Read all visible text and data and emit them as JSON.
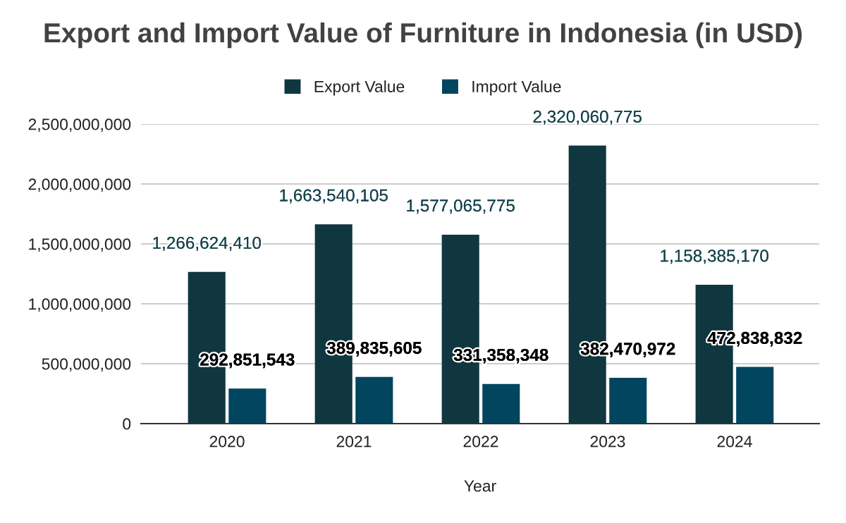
{
  "chart_data": {
    "type": "bar",
    "title": "Export and Import Value of Furniture in Indonesia (in USD)",
    "xlabel": "Year",
    "categories": [
      "2020",
      "2021",
      "2022",
      "2023",
      "2024"
    ],
    "series": [
      {
        "name": "Export Value",
        "color": "#10363f",
        "values": [
          1266624410,
          1663540105,
          1577065775,
          2320060775,
          1158385170
        ],
        "value_labels": [
          "1,266,624,410",
          "1,663,540,105",
          "1,577,065,775",
          "2,320,060,775",
          "1,158,385,170"
        ]
      },
      {
        "name": "Import Value",
        "color": "#01455f",
        "values": [
          292851543,
          389835605,
          331358348,
          382470972,
          472838832
        ],
        "value_labels": [
          "292,851,543",
          "389,835,605",
          "331,358,348",
          "382,470,972",
          "472,838,832"
        ]
      }
    ],
    "ylim": [
      0,
      2500000000
    ],
    "yticks": [
      0,
      {
        "value": 500000000,
        "label": "500,000,000"
      },
      {
        "value": 1000000000,
        "label": "1,000,000,000"
      },
      {
        "value": 1500000000,
        "label": "1,500,000,000"
      },
      {
        "value": 2000000000,
        "label": "2,000,000,000"
      },
      {
        "value": 2500000000,
        "label": "2,500,000,000"
      }
    ],
    "grid": "y",
    "legend": "top"
  }
}
